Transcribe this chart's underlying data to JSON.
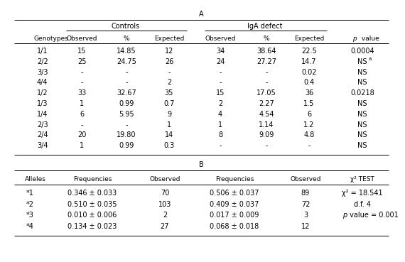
{
  "title_A": "A",
  "title_B": "B",
  "section_A": {
    "col_headers": [
      "Genotypes",
      "Observed",
      "%",
      "Expected",
      "Observed",
      "%",
      "Expected",
      "p value"
    ],
    "rows": [
      [
        "1/1",
        "15",
        "14.85",
        "12",
        "34",
        "38.64",
        "22.5",
        "0.0004"
      ],
      [
        "2/2",
        "25",
        "24.75",
        "26",
        "24",
        "27.27",
        "14.7",
        "NSa"
      ],
      [
        "3/3",
        "-",
        "-",
        "-",
        "-",
        "-",
        "0.02",
        "NS"
      ],
      [
        "4/4",
        "-",
        "-",
        "2",
        "-",
        "-",
        "0.4",
        "NS"
      ],
      [
        "1/2",
        "33",
        "32.67",
        "35",
        "15",
        "17.05",
        "36",
        "0.0218"
      ],
      [
        "1/3",
        "1",
        "0.99",
        "0.7",
        "2",
        "2.27",
        "1.5",
        "NS"
      ],
      [
        "1/4",
        "6",
        "5.95",
        "9",
        "4",
        "4.54",
        "6",
        "NS"
      ],
      [
        "2/3",
        "-",
        "-",
        "1",
        "1",
        "1.14",
        "1.2",
        "NS"
      ],
      [
        "2/4",
        "20",
        "19.80",
        "14",
        "8",
        "9.09",
        "4.8",
        "NS"
      ],
      [
        "3/4",
        "1",
        "0.99",
        "0.3",
        "-",
        "-",
        "-",
        "NS"
      ]
    ]
  },
  "section_B": {
    "col_headers": [
      "Alleles",
      "Frequencies",
      "Observed",
      "Frequencies",
      "Observed",
      "χ² TEST"
    ],
    "rows": [
      [
        "*1",
        "0.346 ± 0.033",
        "70",
        "0.506 ± 0.037",
        "89",
        "χ² = 18.541"
      ],
      [
        "*2",
        "0.510 ± 0.035",
        "103",
        "0.409 ± 0.037",
        "72",
        "d.f. 4"
      ],
      [
        "*3",
        "0.010 ± 0.006",
        "2",
        "0.017 ± 0.009",
        "3",
        "p value = 0.001"
      ],
      [
        "*4",
        "0.134 ± 0.023",
        "27",
        "0.068 ± 0.018",
        "12",
        ""
      ]
    ]
  },
  "background_color": "#ffffff",
  "text_color": "#000000"
}
